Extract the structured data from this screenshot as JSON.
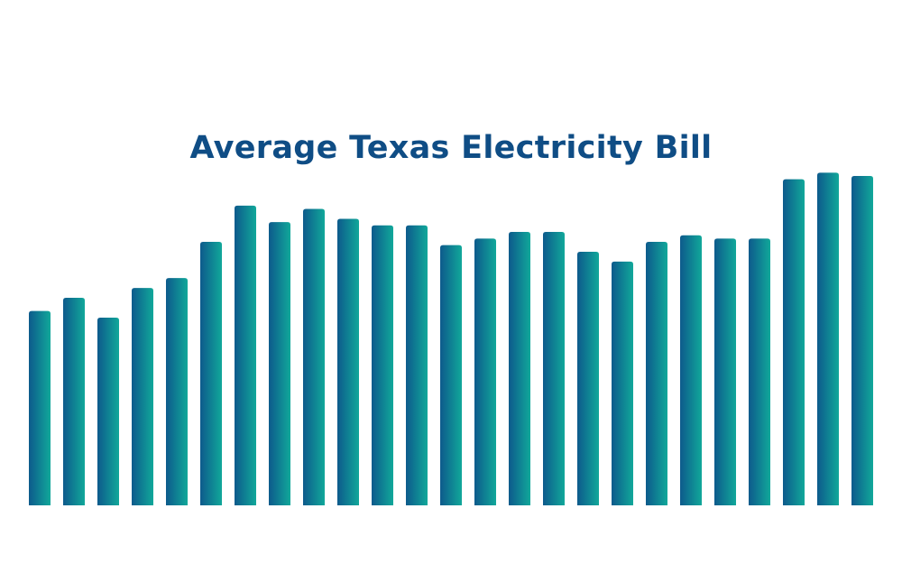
{
  "colors": {
    "title": "#0f4d85",
    "bar_top_left": "#0d5a8c",
    "bar_right": "#11a89a",
    "background": "#ffffff"
  },
  "chart_data": {
    "type": "bar",
    "title": "Average Texas Electricity Bill",
    "xlabel": "",
    "ylabel": "",
    "grid": false,
    "legend": "none",
    "ylim": [
      0,
      100
    ],
    "bar_count": 25,
    "values": [
      59,
      63,
      57,
      66,
      69,
      80,
      91,
      86,
      90,
      87,
      85,
      85,
      79,
      81,
      83,
      83,
      77,
      74,
      80,
      82,
      81,
      81,
      99,
      101,
      100
    ]
  }
}
